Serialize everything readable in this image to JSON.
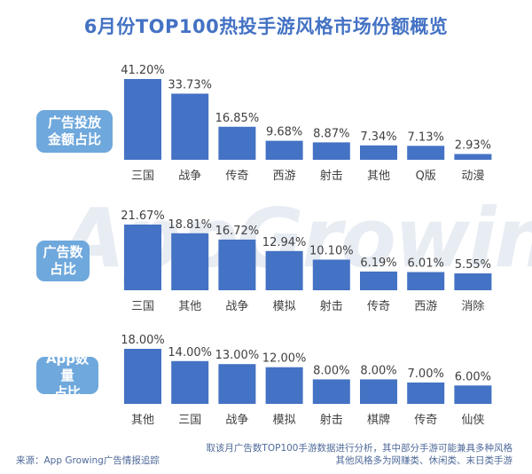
{
  "title": "6月份TOP100热投手游风格市场份额概览",
  "watermark": "AppGrowing",
  "colors": {
    "title": "#4472c4",
    "bar": "#4472c4",
    "badge": "#6fa8dc",
    "value_label": "#404040",
    "category_label": "#404040",
    "footer": "#4f6a9a"
  },
  "chart_data": [
    {
      "type": "bar",
      "title": "广告投放金额占比",
      "badge_lines": [
        "广告投放",
        "金额占比"
      ],
      "categories": [
        "三国",
        "战争",
        "传奇",
        "西游",
        "射击",
        "其他",
        "Q版",
        "动漫"
      ],
      "values": [
        41.2,
        33.73,
        16.85,
        9.68,
        8.87,
        7.34,
        7.13,
        2.93
      ],
      "labels": [
        "41.20%",
        "33.73%",
        "16.85%",
        "9.68%",
        "8.87%",
        "7.34%",
        "7.13%",
        "2.93%"
      ],
      "unit": "%",
      "xlabel": "",
      "ylabel": "",
      "grid": false,
      "legend": "none"
    },
    {
      "type": "bar",
      "title": "广告数占比",
      "badge_lines": [
        "广告数",
        "占比"
      ],
      "categories": [
        "三国",
        "其他",
        "战争",
        "模拟",
        "射击",
        "传奇",
        "西游",
        "消除"
      ],
      "values": [
        21.67,
        18.81,
        16.72,
        12.94,
        10.1,
        6.19,
        6.01,
        5.55
      ],
      "labels": [
        "21.67%",
        "18.81%",
        "16.72%",
        "12.94%",
        "10.10%",
        "6.19%",
        "6.01%",
        "5.55%"
      ],
      "unit": "%",
      "xlabel": "",
      "ylabel": "",
      "grid": false,
      "legend": "none"
    },
    {
      "type": "bar",
      "title": "App数量占比",
      "badge_lines": [
        "App数量",
        "占比"
      ],
      "categories": [
        "其他",
        "三国",
        "战争",
        "模拟",
        "射击",
        "棋牌",
        "传奇",
        "仙侠"
      ],
      "values": [
        18.0,
        14.0,
        13.0,
        12.0,
        8.0,
        8.0,
        7.0,
        6.0
      ],
      "labels": [
        "18.00%",
        "14.00%",
        "13.00%",
        "12.00%",
        "8.00%",
        "8.00%",
        "7.00%",
        "6.00%"
      ],
      "unit": "%",
      "xlabel": "",
      "ylabel": "",
      "grid": false,
      "legend": "none"
    }
  ],
  "footer": {
    "source": "来源：App Growing广告情报追踪",
    "note_line1": "取该月广告数TOP100手游数据进行分析，其中部分手游可能兼具多种风格",
    "note_line2": "其他风格多为网赚类、休闲类、末日类手游"
  }
}
